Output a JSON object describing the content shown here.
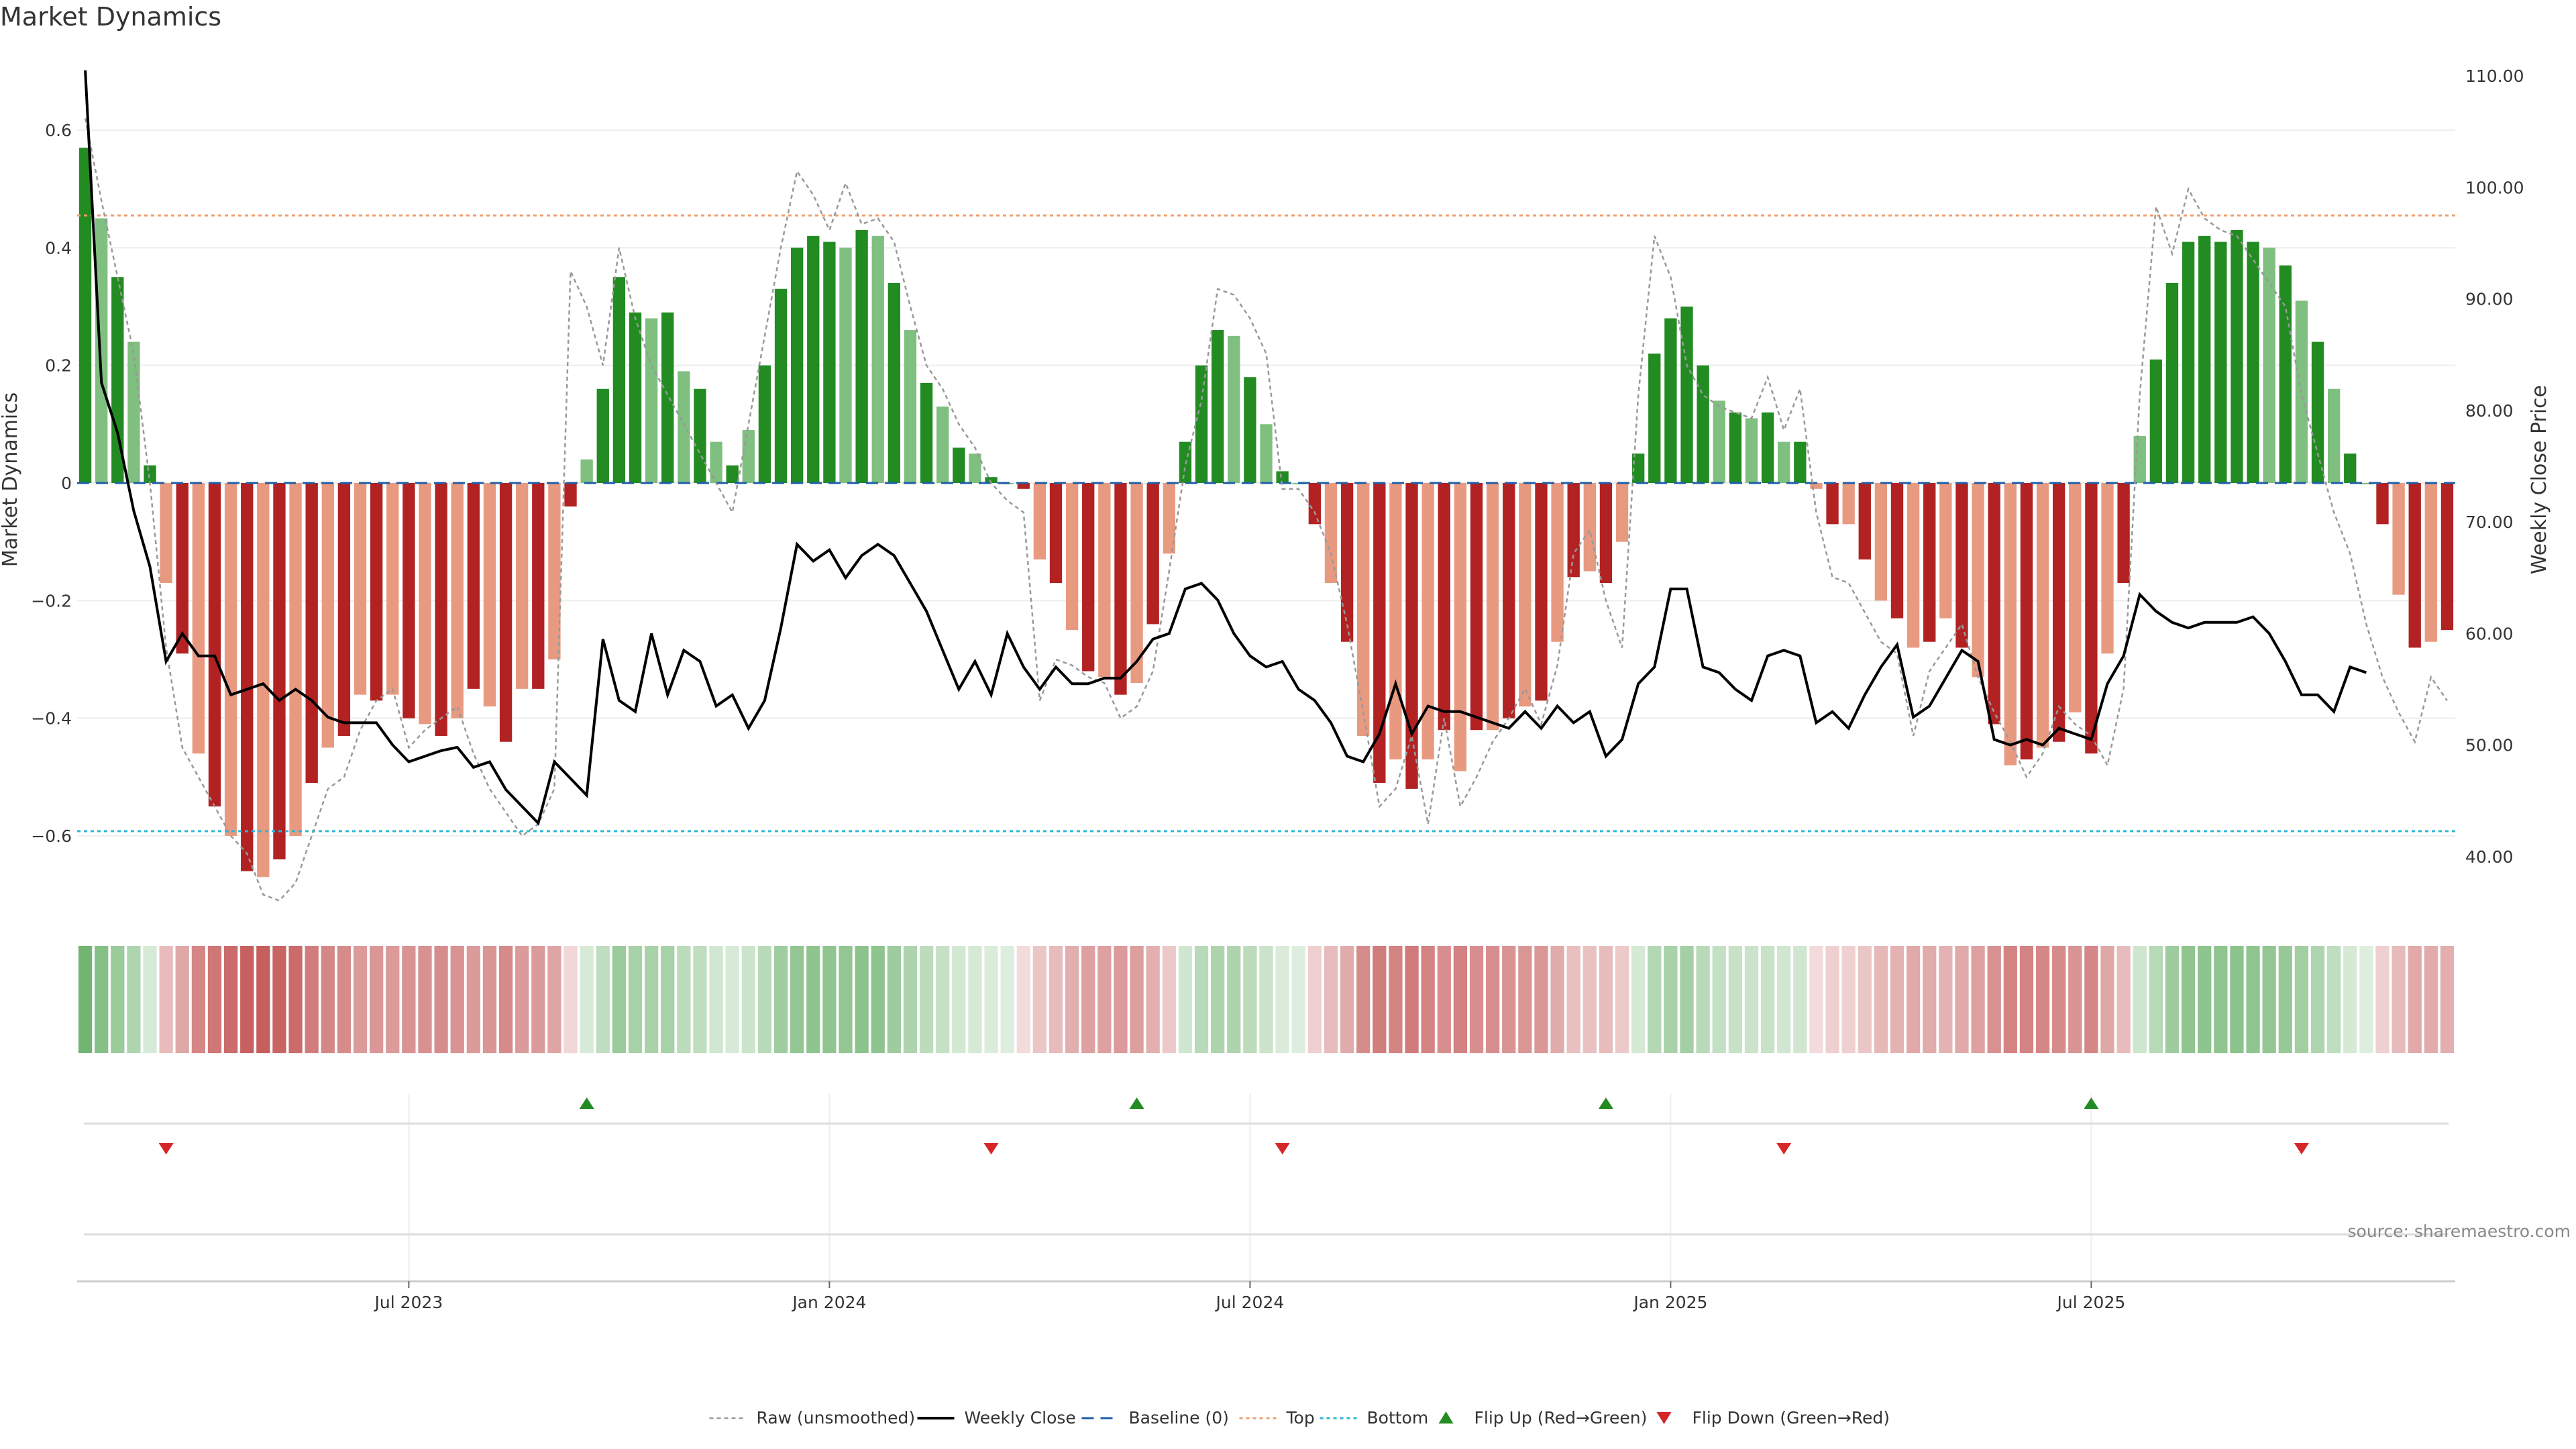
{
  "title": "Market Dynamics",
  "source_note": "source: sharemaestro.com",
  "chart_data": {
    "type": "bar",
    "title": "Market Dynamics",
    "ylabel": "Market Dynamics",
    "y2label": "Weekly Close Price",
    "ylim": [
      -0.73,
      0.73
    ],
    "y2lim": [
      35.0,
      112.0
    ],
    "y_ticks": [
      "0.6",
      "0.4",
      "0.2",
      "0",
      "−0.2",
      "−0.4",
      "−0.6"
    ],
    "y2_ticks": [
      "110.00",
      "100.00",
      "90.00",
      "80.00",
      "70.00",
      "60.00",
      "50.00",
      "40.00"
    ],
    "x_ticks": [
      {
        "label": "Jul 2023",
        "week": 20
      },
      {
        "label": "Jan 2024",
        "week": 46
      },
      {
        "label": "Jul 2024",
        "week": 72
      },
      {
        "label": "Jan 2025",
        "week": 98
      },
      {
        "label": "Jul 2025",
        "week": 124
      }
    ],
    "bars": [
      0.57,
      0.45,
      0.35,
      0.24,
      0.03,
      -0.17,
      -0.29,
      -0.46,
      -0.55,
      -0.6,
      -0.66,
      -0.67,
      -0.64,
      -0.6,
      -0.51,
      -0.45,
      -0.43,
      -0.36,
      -0.37,
      -0.36,
      -0.4,
      -0.41,
      -0.43,
      -0.4,
      -0.35,
      -0.38,
      -0.44,
      -0.35,
      -0.35,
      -0.3,
      -0.04,
      0.04,
      0.16,
      0.35,
      0.29,
      0.28,
      0.29,
      0.19,
      0.16,
      0.07,
      0.03,
      0.09,
      0.2,
      0.33,
      0.4,
      0.42,
      0.41,
      0.4,
      0.43,
      0.42,
      0.34,
      0.26,
      0.17,
      0.13,
      0.06,
      0.05,
      0.01,
      0.0,
      -0.01,
      -0.13,
      -0.17,
      -0.25,
      -0.32,
      -0.33,
      -0.36,
      -0.34,
      -0.24,
      -0.12,
      0.07,
      0.2,
      0.26,
      0.25,
      0.18,
      0.1,
      0.02,
      0.0,
      -0.07,
      -0.17,
      -0.27,
      -0.43,
      -0.51,
      -0.47,
      -0.52,
      -0.47,
      -0.42,
      -0.49,
      -0.42,
      -0.42,
      -0.4,
      -0.38,
      -0.37,
      -0.27,
      -0.16,
      -0.15,
      -0.17,
      -0.1,
      0.05,
      0.22,
      0.28,
      0.3,
      0.2,
      0.14,
      0.12,
      0.11,
      0.12,
      0.07,
      0.07,
      -0.01,
      -0.07,
      -0.07,
      -0.13,
      -0.2,
      -0.23,
      -0.28,
      -0.27,
      -0.23,
      -0.28,
      -0.33,
      -0.41,
      -0.48,
      -0.47,
      -0.45,
      -0.44,
      -0.39,
      -0.46,
      -0.29,
      -0.17,
      0.08,
      0.21,
      0.34,
      0.41,
      0.42,
      0.41,
      0.43,
      0.41,
      0.4,
      0.37,
      0.31,
      0.24,
      0.16,
      0.05,
      0.0,
      -0.07,
      -0.19,
      -0.28,
      -0.27,
      -0.25
    ],
    "close": [
      110.5,
      82.5,
      78.0,
      71.0,
      66.0,
      57.5,
      60.0,
      58.0,
      58.0,
      54.5,
      55.0,
      55.5,
      54.0,
      55.0,
      54.0,
      52.5,
      52.0,
      52.0,
      52.0,
      50.0,
      48.5,
      49.0,
      49.5,
      49.8,
      48.0,
      48.5,
      46.0,
      44.5,
      43.0,
      48.5,
      47.0,
      45.5,
      59.5,
      54.0,
      53.0,
      60.0,
      54.5,
      58.5,
      57.5,
      53.5,
      54.5,
      51.5,
      54.0,
      60.5,
      68.0,
      66.5,
      67.5,
      65.0,
      67.0,
      68.0,
      67.0,
      64.5,
      62.0,
      58.5,
      55.0,
      57.5,
      54.5,
      60.0,
      57.0,
      55.0,
      57.0,
      55.5,
      55.5,
      56.0,
      56.0,
      57.5,
      59.5,
      60.0,
      64.0,
      64.5,
      63.0,
      60.0,
      58.0,
      57.0,
      57.5,
      55.0,
      54.0,
      52.0,
      49.0,
      48.5,
      51.0,
      55.5,
      51.0,
      53.5,
      53.0,
      53.0,
      52.5,
      52.0,
      51.5,
      53.0,
      51.5,
      53.5,
      52.0,
      53.0,
      49.0,
      50.5,
      55.5,
      57.0,
      64.0,
      64.0,
      57.0,
      56.5,
      55.0,
      54.0,
      58.0,
      58.5,
      58.0,
      52.0,
      53.0,
      51.5,
      54.5,
      57.0,
      59.0,
      52.5,
      53.5,
      56.0,
      58.5,
      57.5,
      50.5,
      50.0,
      50.5,
      50.0,
      51.5,
      51.0,
      50.5,
      55.5,
      58.0,
      63.5,
      62.0,
      61.0,
      60.5,
      61.0,
      61.0,
      61.0,
      61.5,
      60.0,
      57.5,
      54.5,
      54.5,
      53.0,
      57.0,
      56.5
    ],
    "raw": [
      0.62,
      0.48,
      0.35,
      0.22,
      0.0,
      -0.28,
      -0.45,
      -0.5,
      -0.55,
      -0.6,
      -0.63,
      -0.7,
      -0.71,
      -0.68,
      -0.6,
      -0.52,
      -0.5,
      -0.42,
      -0.37,
      -0.35,
      -0.45,
      -0.42,
      -0.4,
      -0.38,
      -0.46,
      -0.52,
      -0.56,
      -0.6,
      -0.58,
      -0.52,
      0.36,
      0.3,
      0.2,
      0.4,
      0.28,
      0.2,
      0.15,
      0.1,
      0.05,
      0.0,
      -0.05,
      0.1,
      0.25,
      0.4,
      0.53,
      0.49,
      0.43,
      0.51,
      0.44,
      0.45,
      0.41,
      0.3,
      0.2,
      0.16,
      0.1,
      0.06,
      0.0,
      -0.03,
      -0.05,
      -0.37,
      -0.3,
      -0.31,
      -0.33,
      -0.34,
      -0.4,
      -0.38,
      -0.32,
      -0.15,
      0.03,
      0.14,
      0.33,
      0.32,
      0.28,
      0.22,
      -0.01,
      -0.01,
      -0.05,
      -0.12,
      -0.24,
      -0.39,
      -0.55,
      -0.52,
      -0.43,
      -0.58,
      -0.4,
      -0.55,
      -0.5,
      -0.44,
      -0.4,
      -0.35,
      -0.41,
      -0.31,
      -0.12,
      -0.08,
      -0.2,
      -0.28,
      0.15,
      0.42,
      0.35,
      0.2,
      0.15,
      0.13,
      0.12,
      0.11,
      0.18,
      0.09,
      0.16,
      -0.05,
      -0.16,
      -0.17,
      -0.22,
      -0.27,
      -0.29,
      -0.43,
      -0.32,
      -0.28,
      -0.24,
      -0.33,
      -0.39,
      -0.44,
      -0.5,
      -0.46,
      -0.38,
      -0.41,
      -0.43,
      -0.48,
      -0.35,
      0.15,
      0.47,
      0.39,
      0.5,
      0.45,
      0.43,
      0.42,
      0.38,
      0.34,
      0.3,
      0.15,
      0.05,
      -0.05,
      -0.12,
      -0.24,
      -0.33,
      -0.39,
      -0.44,
      -0.33,
      -0.37
    ],
    "baseline": 0,
    "top": 0.455,
    "bottom": -0.592,
    "flip_up_weeks": [
      31,
      65,
      94,
      124
    ],
    "flip_down_weeks": [
      5,
      56,
      74,
      105,
      137
    ],
    "legend": [
      "Raw (unsmoothed)",
      "Weekly Close",
      "Baseline (0)",
      "Top",
      "Bottom",
      "Flip Up (Red→Green)",
      "Flip Down (Green→Red)"
    ],
    "legend_position": "bottom",
    "colors": {
      "green_dark": "#228b22",
      "green_light": "#7fbf7f",
      "red_dark": "#b22222",
      "red_light": "#e89a80",
      "close_line": "#000000",
      "raw_line": "#999999",
      "baseline": "#1f5fa8",
      "top": "#f0a070",
      "bottom": "#2bb5d8",
      "flip_up": "#228b22",
      "flip_down": "#d62728"
    },
    "grid": true
  }
}
